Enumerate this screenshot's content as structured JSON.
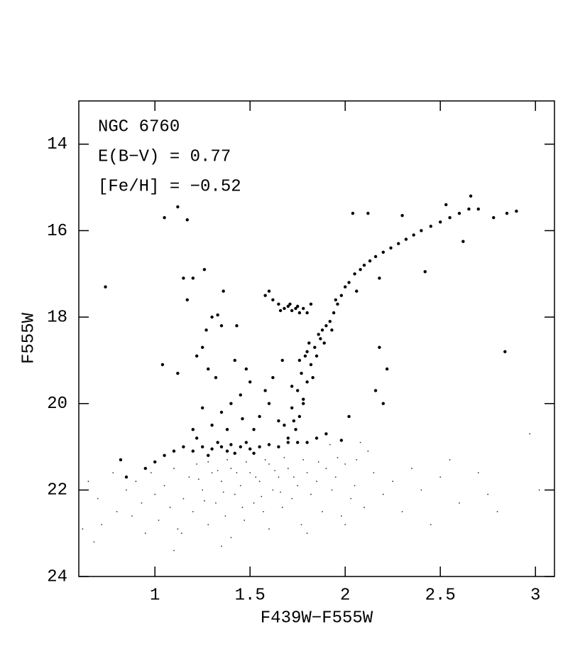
{
  "chart_data": {
    "type": "scatter",
    "annotations": [
      "NGC 6760",
      "E(B−V) = 0.77",
      "[Fe/H] = −0.52"
    ],
    "x_label": "F439W−F555W",
    "y_label": "F555W",
    "xlim": [
      0.6,
      3.1
    ],
    "ylim": [
      24,
      13
    ],
    "xticks": [
      1,
      1.5,
      2,
      2.5,
      3
    ],
    "yticks": [
      14,
      16,
      18,
      20,
      22,
      24
    ],
    "series": [
      {
        "color": "#000000",
        "marker_size": 2.2,
        "x": [
          1.74,
          1.76,
          1.72,
          1.78,
          1.75,
          1.8,
          1.77,
          1.82,
          1.79,
          1.84,
          1.81,
          1.86,
          1.88,
          1.9,
          1.85,
          1.83,
          1.78,
          1.73,
          1.7,
          1.68,
          1.72,
          1.76,
          1.8,
          1.87,
          1.92,
          1.94,
          1.96,
          1.98,
          2.0,
          2.02,
          2.05,
          2.08,
          2.1,
          2.13,
          2.16,
          2.2,
          2.24,
          2.28,
          2.32,
          2.36,
          2.4,
          2.45,
          2.5,
          2.55,
          2.6,
          2.65,
          2.7,
          2.78,
          2.85,
          2.9,
          2.53,
          2.66,
          2.62,
          2.42,
          2.04,
          2.12,
          2.3,
          2.18,
          2.06,
          1.95,
          1.93,
          1.89,
          1.62,
          1.65,
          1.68,
          1.7,
          1.72,
          1.74,
          1.76,
          1.78,
          1.66,
          1.71,
          1.75,
          1.8,
          1.58,
          1.82,
          1.05,
          1.1,
          1.15,
          1.2,
          1.25,
          1.3,
          1.35,
          1.4,
          1.45,
          1.5,
          1.55,
          1.6,
          1.65,
          1.7,
          1.75,
          1.8,
          1.85,
          1.9,
          1.98,
          1.38,
          1.48,
          1.42,
          1.33,
          1.28,
          1.52,
          1.22,
          0.95,
          0.82,
          0.85,
          1.0,
          1.3,
          1.35,
          1.4,
          1.45,
          1.5,
          1.25,
          1.2,
          1.55,
          1.6,
          1.48,
          1.42,
          1.65,
          1.58,
          1.38,
          1.52,
          1.62,
          1.67,
          1.46,
          1.27,
          1.3,
          1.33,
          1.35,
          1.25,
          1.22,
          1.36,
          1.26,
          1.17,
          1.15,
          1.12,
          1.05,
          1.17,
          1.04,
          0.74,
          1.12,
          1.2,
          1.28,
          1.32,
          2.84,
          2.2,
          2.18,
          2.22,
          2.16,
          1.43,
          1.6,
          2.02
        ],
        "values": [
          20.6,
          20.3,
          20.1,
          19.9,
          19.7,
          19.5,
          19.3,
          19.1,
          18.9,
          18.7,
          18.6,
          18.4,
          18.3,
          18.2,
          18.9,
          19.4,
          20.0,
          20.4,
          20.8,
          20.5,
          19.6,
          19.0,
          18.8,
          18.5,
          18.1,
          17.9,
          17.7,
          17.5,
          17.3,
          17.2,
          17.0,
          16.9,
          16.8,
          16.7,
          16.6,
          16.5,
          16.4,
          16.3,
          16.2,
          16.1,
          16.0,
          15.9,
          15.8,
          15.7,
          15.6,
          15.5,
          15.5,
          15.7,
          15.6,
          15.55,
          15.4,
          15.2,
          16.25,
          16.95,
          15.6,
          15.6,
          15.65,
          17.1,
          17.4,
          17.6,
          18.3,
          18.6,
          17.6,
          17.7,
          17.8,
          17.75,
          17.85,
          17.8,
          17.9,
          17.8,
          17.85,
          17.7,
          17.75,
          17.9,
          17.5,
          17.7,
          21.2,
          21.1,
          21.0,
          21.1,
          21.0,
          21.05,
          21.0,
          20.95,
          21.0,
          21.05,
          21.0,
          20.95,
          21.0,
          20.9,
          20.9,
          20.9,
          20.8,
          20.7,
          20.85,
          21.1,
          20.9,
          21.15,
          20.9,
          21.2,
          21.15,
          20.8,
          21.5,
          21.3,
          21.7,
          21.35,
          20.5,
          20.2,
          20.0,
          19.8,
          19.5,
          20.1,
          20.6,
          20.3,
          20.0,
          19.2,
          19.0,
          20.4,
          19.7,
          20.6,
          20.6,
          19.4,
          19.0,
          20.35,
          18.3,
          18.0,
          17.95,
          18.2,
          18.7,
          18.9,
          17.4,
          16.9,
          17.6,
          17.1,
          15.45,
          15.7,
          15.75,
          19.1,
          17.3,
          19.3,
          17.1,
          19.2,
          19.4,
          18.8,
          20.0,
          18.7,
          19.2,
          19.7,
          18.2,
          17.4,
          20.3
        ]
      },
      {
        "color": "#333333",
        "marker_size": 0.9,
        "x": [
          0.65,
          0.7,
          0.72,
          0.78,
          0.8,
          0.85,
          0.88,
          0.9,
          0.93,
          0.95,
          0.98,
          1.0,
          1.02,
          1.05,
          1.08,
          1.1,
          1.12,
          1.15,
          1.18,
          1.2,
          1.22,
          1.25,
          1.28,
          1.3,
          1.32,
          1.35,
          1.37,
          1.4,
          1.42,
          1.45,
          1.47,
          1.5,
          1.52,
          1.55,
          1.57,
          1.6,
          1.62,
          1.65,
          1.67,
          1.7,
          1.72,
          1.75,
          1.77,
          1.8,
          1.82,
          1.85,
          1.88,
          1.9,
          1.93,
          1.95,
          1.98,
          2.0,
          2.03,
          2.05,
          2.1,
          2.15,
          2.2,
          2.25,
          2.3,
          2.35,
          2.4,
          2.5,
          2.6,
          2.7,
          2.8,
          2.97,
          3.02,
          2.45,
          1.38,
          1.48,
          1.58,
          1.68,
          1.78,
          1.28,
          1.43,
          1.53,
          1.63,
          1.73,
          1.33,
          1.23,
          1.46,
          1.56,
          1.66,
          1.36,
          1.26,
          1.86,
          1.96,
          2.06,
          0.62,
          0.68,
          1.14,
          1.4,
          1.6,
          1.8,
          2.0,
          1.1,
          1.35,
          2.08,
          2.12,
          1.92,
          2.55,
          2.75
        ],
        "values": [
          21.8,
          22.2,
          22.8,
          21.6,
          22.5,
          22.0,
          22.6,
          21.8,
          22.3,
          23.0,
          21.6,
          22.1,
          22.7,
          21.9,
          22.4,
          21.5,
          22.9,
          22.2,
          21.7,
          22.5,
          21.4,
          22.0,
          22.8,
          21.6,
          22.3,
          21.8,
          22.6,
          21.5,
          22.1,
          21.9,
          22.7,
          21.6,
          22.3,
          21.8,
          22.5,
          21.4,
          22.0,
          21.7,
          22.4,
          21.5,
          22.2,
          21.9,
          22.8,
          21.6,
          22.1,
          21.8,
          22.5,
          21.5,
          22.0,
          21.7,
          22.6,
          21.4,
          22.2,
          21.9,
          22.4,
          21.6,
          22.1,
          21.8,
          22.5,
          21.5,
          22.0,
          21.7,
          22.3,
          21.6,
          22.5,
          20.7,
          22.0,
          22.8,
          21.3,
          21.35,
          21.3,
          21.25,
          21.3,
          21.35,
          21.6,
          21.7,
          21.55,
          21.7,
          21.55,
          21.75,
          22.4,
          22.15,
          22.05,
          22.05,
          22.25,
          21.35,
          21.25,
          21.3,
          22.9,
          23.2,
          23.0,
          23.1,
          22.9,
          23.0,
          22.8,
          23.4,
          23.3,
          20.9,
          21.1,
          20.95,
          21.3,
          22.1
        ]
      }
    ]
  }
}
